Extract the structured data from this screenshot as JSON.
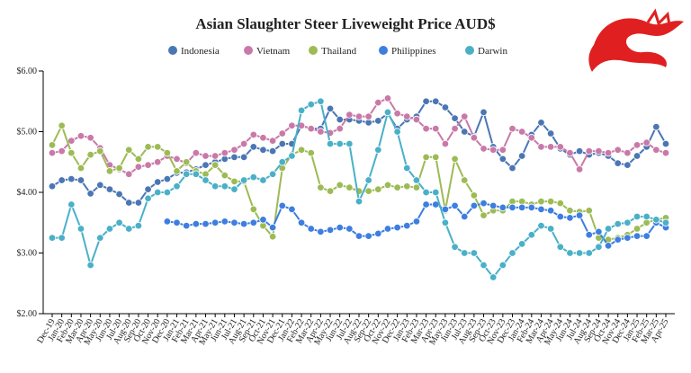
{
  "chart_data": {
    "type": "line",
    "title": "Asian Slaughter Steer Liveweight Price AUD$",
    "categories": [
      "Dec-19",
      "Jan-20",
      "Feb-20",
      "Mar-20",
      "Apr-20",
      "May-20",
      "Jun-20",
      "Jul-20",
      "Aug-20",
      "Sep-20",
      "Oct-20",
      "Nov-20",
      "Dec-20",
      "Jan-21",
      "Feb-21",
      "Mar-21",
      "Apr-21",
      "May-21",
      "Jun-21",
      "Jul-21",
      "Aug-21",
      "Sep-21",
      "Oct-21",
      "Nov-21",
      "Dec-21",
      "Jan-22",
      "Feb-22",
      "Mar-22",
      "Apr-22",
      "May-22",
      "Jun-22",
      "Jul-22",
      "Aug-22",
      "Sep-22",
      "Oct-22",
      "Nov-22",
      "Dec-22",
      "Jan-23",
      "Feb-23",
      "Mar-23",
      "Apr-23",
      "May-23",
      "Jun-23",
      "Jul-23",
      "Aug-23",
      "Sep-23",
      "Oct-23",
      "Nov-23",
      "Dec-23",
      "Jan-24",
      "Feb-24",
      "Mar-24",
      "Apr-24",
      "May-24",
      "Jun-24",
      "Jul-24",
      "Aug-24",
      "Sep-24",
      "Oct-24",
      "Nov-24",
      "Dec-24",
      "Jan-25",
      "Feb-25",
      "Mar-25",
      "Apr-25"
    ],
    "series": [
      {
        "name": "Indonesia",
        "color": "#4a76b4",
        "values": [
          4.1,
          4.2,
          4.22,
          4.2,
          3.98,
          4.12,
          4.05,
          3.97,
          3.83,
          3.83,
          4.05,
          4.17,
          4.22,
          4.32,
          4.33,
          4.38,
          4.45,
          4.5,
          4.55,
          4.58,
          4.58,
          4.75,
          4.7,
          4.68,
          4.8,
          4.8,
          5.1,
          5.05,
          5.05,
          5.38,
          5.2,
          5.2,
          5.18,
          5.15,
          5.18,
          5.3,
          5.05,
          5.2,
          5.25,
          5.5,
          5.5,
          5.4,
          5.22,
          5.0,
          4.92,
          5.32,
          4.75,
          4.55,
          4.4,
          4.6,
          4.95,
          5.15,
          4.97,
          4.72,
          4.62,
          4.68,
          4.62,
          4.65,
          4.6,
          4.48,
          4.45,
          4.6,
          4.75,
          5.08,
          4.8
        ]
      },
      {
        "name": "Vietnam",
        "color": "#c979a8",
        "values": [
          4.65,
          4.68,
          4.85,
          4.93,
          4.9,
          4.73,
          4.45,
          4.38,
          4.3,
          4.42,
          4.45,
          4.5,
          4.6,
          4.55,
          4.48,
          4.65,
          4.6,
          4.6,
          4.65,
          4.7,
          4.8,
          4.95,
          4.9,
          4.85,
          4.97,
          5.1,
          5.1,
          5.05,
          5.0,
          4.98,
          5.05,
          5.28,
          5.25,
          5.25,
          5.48,
          5.55,
          5.3,
          5.25,
          5.2,
          5.05,
          5.05,
          4.8,
          5.05,
          5.25,
          4.9,
          4.72,
          4.7,
          4.7,
          5.05,
          5.0,
          4.9,
          4.75,
          4.75,
          4.75,
          4.65,
          4.38,
          4.68,
          4.68,
          4.65,
          4.7,
          4.65,
          4.78,
          4.82,
          4.7,
          4.65
        ]
      },
      {
        "name": "Thailand",
        "color": "#9dbb55",
        "values": [
          4.78,
          5.1,
          4.65,
          4.4,
          4.62,
          4.68,
          4.35,
          4.4,
          4.7,
          4.55,
          4.75,
          4.75,
          4.65,
          4.35,
          4.5,
          4.35,
          4.3,
          4.45,
          4.28,
          4.18,
          4.18,
          3.72,
          3.45,
          3.27,
          4.4,
          4.62,
          4.7,
          4.65,
          4.08,
          4.02,
          4.12,
          4.08,
          4.02,
          4.02,
          4.05,
          4.12,
          4.08,
          4.1,
          4.08,
          4.58,
          4.58,
          3.7,
          4.55,
          4.2,
          3.95,
          3.62,
          3.7,
          3.7,
          3.85,
          3.85,
          3.8,
          3.85,
          3.85,
          3.82,
          3.7,
          3.68,
          3.7,
          3.25,
          3.22,
          3.25,
          3.3,
          3.4,
          3.5,
          3.55,
          3.58
        ]
      },
      {
        "name": "Philippines",
        "color": "#3d7ee0",
        "values": [
          null,
          null,
          null,
          null,
          null,
          null,
          null,
          null,
          null,
          null,
          null,
          null,
          3.52,
          3.5,
          3.45,
          3.48,
          3.48,
          3.5,
          3.52,
          3.5,
          3.48,
          3.5,
          3.55,
          3.42,
          3.78,
          3.72,
          3.5,
          3.4,
          3.35,
          3.38,
          3.42,
          3.4,
          3.28,
          3.28,
          3.32,
          3.4,
          3.42,
          3.45,
          3.52,
          3.8,
          3.8,
          3.72,
          3.78,
          3.6,
          3.78,
          3.82,
          3.78,
          3.75,
          3.75,
          3.75,
          3.75,
          3.72,
          3.7,
          3.6,
          3.58,
          3.62,
          3.3,
          3.35,
          3.12,
          3.22,
          3.25,
          3.28,
          3.28,
          3.5,
          3.42
        ]
      },
      {
        "name": "Darwin",
        "color": "#4ab0c8",
        "values": [
          3.25,
          3.25,
          3.8,
          3.4,
          2.8,
          3.25,
          3.4,
          3.5,
          3.4,
          3.45,
          3.9,
          4.0,
          4.0,
          4.1,
          4.3,
          4.3,
          4.2,
          4.1,
          4.1,
          4.05,
          4.2,
          4.25,
          4.2,
          4.3,
          4.5,
          4.6,
          5.35,
          5.45,
          5.5,
          4.8,
          4.8,
          4.8,
          3.85,
          4.2,
          4.7,
          5.32,
          5.0,
          4.4,
          4.2,
          4.0,
          4.0,
          3.5,
          3.1,
          3.0,
          3.0,
          2.8,
          2.6,
          2.8,
          3.0,
          3.15,
          3.3,
          3.45,
          3.4,
          3.1,
          3.0,
          3.0,
          3.0,
          3.1,
          3.4,
          3.48,
          3.5,
          3.6,
          3.6,
          3.55,
          3.5
        ]
      }
    ],
    "ylim": [
      2,
      6
    ],
    "yticks": [
      {
        "value": 2,
        "label": "$2.00"
      },
      {
        "value": 3,
        "label": "$3.00"
      },
      {
        "value": 4,
        "label": "$4.00"
      },
      {
        "value": 5,
        "label": "$5.00"
      },
      {
        "value": 6,
        "label": "$6.00"
      }
    ],
    "legend": "top"
  }
}
